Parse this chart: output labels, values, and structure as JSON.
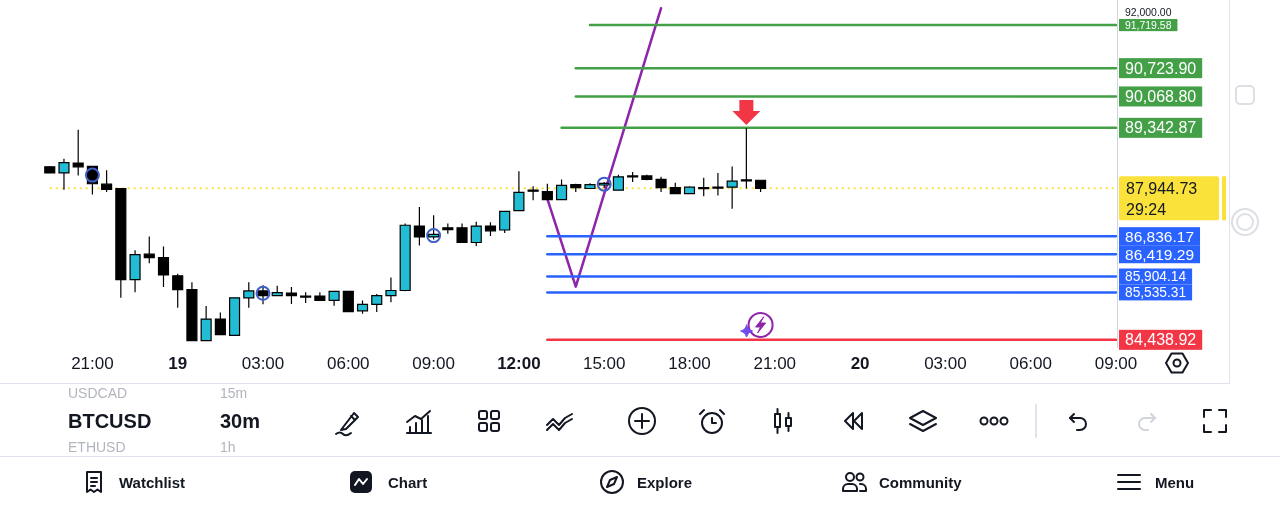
{
  "chart_data": {
    "type": "candlestick",
    "categories": [
      null,
      null,
      null,
      null,
      null,
      null,
      "21:00",
      null,
      null,
      null,
      null,
      null,
      "19",
      null,
      null,
      null,
      null,
      null,
      "03:00",
      null,
      null,
      null,
      null,
      null,
      "06:00",
      null,
      null,
      null,
      null,
      null,
      "09:00",
      null,
      null,
      null,
      null,
      null,
      "12:00",
      null,
      null,
      null,
      null,
      null,
      "15:00",
      null,
      null,
      null,
      null,
      null,
      "18:00",
      null,
      null,
      null,
      null,
      null,
      "21:00",
      null,
      null,
      null,
      null,
      null,
      "20",
      null,
      null,
      null,
      null,
      null,
      "03:00",
      null,
      null,
      null,
      null,
      null,
      "06:00",
      null,
      null,
      null,
      null,
      null,
      "09:00"
    ],
    "ohlc": [
      null,
      null,
      null,
      [
        88440,
        88460,
        88290,
        88300
      ],
      [
        88300,
        88630,
        87910,
        88540
      ],
      [
        88530,
        89300,
        88240,
        88440
      ],
      [
        88450,
        88460,
        87800,
        88050
      ],
      [
        88040,
        88360,
        87860,
        87920
      ],
      [
        87940,
        87950,
        85410,
        85830
      ],
      [
        85830,
        86510,
        85540,
        86410
      ],
      [
        86420,
        86830,
        86210,
        86340
      ],
      [
        86340,
        86600,
        85660,
        85940
      ],
      [
        85920,
        85970,
        85180,
        85600
      ],
      [
        85600,
        85770,
        84410,
        84420
      ],
      [
        84420,
        85220,
        84410,
        84920
      ],
      [
        84920,
        85070,
        84550,
        84560
      ],
      [
        84540,
        85420,
        84530,
        85410
      ],
      [
        85410,
        85770,
        85180,
        85570
      ],
      [
        85570,
        85700,
        85260,
        85460
      ],
      [
        85460,
        85690,
        85450,
        85530
      ],
      [
        85520,
        85660,
        85270,
        85460
      ],
      [
        85450,
        85540,
        85290,
        85440
      ],
      [
        85450,
        85540,
        85340,
        85350
      ],
      [
        85350,
        85560,
        85230,
        85560
      ],
      [
        85560,
        85560,
        85090,
        85090
      ],
      [
        85110,
        85350,
        85040,
        85260
      ],
      [
        85260,
        85500,
        85080,
        85460
      ],
      [
        85460,
        85880,
        85310,
        85580
      ],
      [
        85580,
        87130,
        85560,
        87090
      ],
      [
        87070,
        87510,
        86620,
        86820
      ],
      [
        86820,
        87320,
        86760,
        86880
      ],
      [
        87030,
        87130,
        86890,
        86990
      ],
      [
        87030,
        87130,
        86680,
        86690
      ],
      [
        86690,
        87170,
        86610,
        87070
      ],
      [
        87070,
        87160,
        86840,
        86960
      ],
      [
        86980,
        87420,
        86910,
        87410
      ],
      [
        87430,
        88340,
        87430,
        87850
      ],
      [
        87900,
        87990,
        87670,
        87880
      ],
      [
        87870,
        88050,
        87670,
        87680
      ],
      [
        87680,
        88150,
        87680,
        88010
      ],
      [
        88030,
        88050,
        87860,
        87960
      ],
      [
        87940,
        88060,
        87930,
        88030
      ],
      [
        88020,
        88090,
        87950,
        88060
      ],
      [
        87900,
        88260,
        87890,
        88210
      ],
      [
        88220,
        88320,
        88090,
        88230
      ],
      [
        88230,
        88260,
        88130,
        88150
      ],
      [
        88150,
        88210,
        87860,
        87960
      ],
      [
        87960,
        88070,
        87820,
        87820
      ],
      [
        87820,
        87990,
        87810,
        87970
      ],
      [
        87950,
        88190,
        87760,
        87960
      ],
      [
        87960,
        88300,
        87780,
        87970
      ],
      [
        87970,
        88450,
        87470,
        88110
      ],
      [
        88130,
        89340,
        87940,
        88140
      ],
      [
        88130,
        88140,
        87860,
        87944.73
      ],
      null,
      null,
      null,
      null,
      null,
      null,
      null,
      null,
      null,
      null,
      null,
      null,
      null,
      null,
      null,
      null,
      null,
      null,
      null,
      null,
      null,
      null,
      null,
      null,
      null
    ],
    "colors": [
      null,
      null,
      null,
      "#000000",
      "#22bcd4",
      "#000000",
      "#000000",
      "#000000",
      "#000000",
      "#22bcd4",
      "#000000",
      "#000000",
      "#000000",
      "#000000",
      "#22bcd4",
      "#000000",
      "#22bcd4",
      "#22bcd4",
      "#000000",
      "#22bcd4",
      "#000000",
      "#000000",
      "#000000",
      "#22bcd4",
      "#000000",
      "#22bcd4",
      "#22bcd4",
      "#22bcd4",
      "#22bcd4",
      "#000000",
      "#22bcd4",
      "#000000",
      "#000000",
      "#22bcd4",
      "#000000",
      "#22bcd4",
      "#22bcd4",
      "#000000",
      "#000000",
      "#22bcd4",
      "#000000",
      "#22bcd4",
      "#22bcd4",
      "#22bcd4",
      "#22bcd4",
      "#000000",
      "#000000",
      "#000000",
      "#22bcd4",
      "#22bcd4",
      "#22bcd4",
      "#22bcd4",
      "#22bcd4",
      "#000000",
      null,
      null,
      null,
      null,
      null,
      null,
      null,
      null,
      null,
      null,
      null,
      null,
      null,
      null,
      null,
      null,
      null,
      null,
      null,
      null,
      null,
      null,
      null,
      null,
      null
    ],
    "series": [
      {
        "type": "line",
        "color": "#8e24aa",
        "values": [
          null,
          null,
          null,
          null,
          null,
          null,
          null,
          null,
          null,
          null,
          null,
          null,
          null,
          null,
          null,
          null,
          null,
          null,
          null,
          null,
          null,
          null,
          null,
          null,
          null,
          null,
          null,
          null,
          null,
          null,
          null,
          null,
          null,
          null,
          null,
          null,
          null,
          null,
          87700,
          86690,
          85670,
          86740,
          87820,
          88890,
          89960,
          91040,
          92110,
          null,
          null,
          null,
          null,
          null,
          null,
          null,
          null,
          null,
          null,
          null,
          null,
          null,
          null,
          null,
          null,
          null,
          null,
          null,
          null,
          null,
          null,
          null,
          null,
          null,
          null,
          null,
          null,
          null,
          null,
          null,
          null
        ]
      },
      {
        "type": "line",
        "color": "#43a047",
        "values": [
          null,
          null,
          null,
          null,
          null,
          null,
          null,
          null,
          null,
          null,
          null,
          null,
          null,
          null,
          null,
          null,
          null,
          null,
          null,
          null,
          null,
          null,
          null,
          null,
          null,
          null,
          null,
          null,
          null,
          null,
          null,
          null,
          null,
          null,
          null,
          null,
          null,
          null,
          null,
          null,
          null,
          91719.58,
          91719.58,
          91719.58,
          91719.58,
          91719.58,
          91719.58,
          91719.58,
          91719.58,
          91719.58,
          91719.58,
          91719.58,
          91719.58,
          91719.58,
          91719.58,
          91719.58,
          91719.58,
          91719.58,
          91719.58,
          91719.58,
          91719.58,
          91719.58,
          91719.58,
          91719.58,
          91719.58,
          91719.58,
          91719.58,
          91719.58,
          91719.58,
          91719.58,
          91719.58,
          91719.58,
          91719.58,
          91719.58,
          91719.58,
          91719.58,
          91719.58,
          91719.58,
          91719.58
        ]
      },
      {
        "type": "line",
        "color": "#43a047",
        "values": [
          null,
          null,
          null,
          null,
          null,
          null,
          null,
          null,
          null,
          null,
          null,
          null,
          null,
          null,
          null,
          null,
          null,
          null,
          null,
          null,
          null,
          null,
          null,
          null,
          null,
          null,
          null,
          null,
          null,
          null,
          null,
          null,
          null,
          null,
          null,
          null,
          null,
          null,
          null,
          null,
          90723.9,
          90723.9,
          90723.9,
          90723.9,
          90723.9,
          90723.9,
          90723.9,
          90723.9,
          90723.9,
          90723.9,
          90723.9,
          90723.9,
          90723.9,
          90723.9,
          90723.9,
          90723.9,
          90723.9,
          90723.9,
          90723.9,
          90723.9,
          90723.9,
          90723.9,
          90723.9,
          90723.9,
          90723.9,
          90723.9,
          90723.9,
          90723.9,
          90723.9,
          90723.9,
          90723.9,
          90723.9,
          90723.9,
          90723.9,
          90723.9,
          90723.9,
          90723.9,
          90723.9,
          90723.9
        ]
      },
      {
        "type": "line",
        "color": "#43a047",
        "values": [
          null,
          null,
          null,
          null,
          null,
          null,
          null,
          null,
          null,
          null,
          null,
          null,
          null,
          null,
          null,
          null,
          null,
          null,
          null,
          null,
          null,
          null,
          null,
          null,
          null,
          null,
          null,
          null,
          null,
          null,
          null,
          null,
          null,
          null,
          null,
          null,
          null,
          null,
          null,
          null,
          90068.8,
          90068.8,
          90068.8,
          90068.8,
          90068.8,
          90068.8,
          90068.8,
          90068.8,
          90068.8,
          90068.8,
          90068.8,
          90068.8,
          90068.8,
          90068.8,
          90068.8,
          90068.8,
          90068.8,
          90068.8,
          90068.8,
          90068.8,
          90068.8,
          90068.8,
          90068.8,
          90068.8,
          90068.8,
          90068.8,
          90068.8,
          90068.8,
          90068.8,
          90068.8,
          90068.8,
          90068.8,
          90068.8,
          90068.8,
          90068.8,
          90068.8,
          90068.8,
          90068.8,
          90068.8
        ]
      },
      {
        "type": "line",
        "color": "#43a047",
        "values": [
          null,
          null,
          null,
          null,
          null,
          null,
          null,
          null,
          null,
          null,
          null,
          null,
          null,
          null,
          null,
          null,
          null,
          null,
          null,
          null,
          null,
          null,
          null,
          null,
          null,
          null,
          null,
          null,
          null,
          null,
          null,
          null,
          null,
          null,
          null,
          null,
          null,
          null,
          null,
          89342.87,
          89342.87,
          89342.87,
          89342.87,
          89342.87,
          89342.87,
          89342.87,
          89342.87,
          89342.87,
          89342.87,
          89342.87,
          89342.87,
          89342.87,
          89342.87,
          89342.87,
          89342.87,
          89342.87,
          89342.87,
          89342.87,
          89342.87,
          89342.87,
          89342.87,
          89342.87,
          89342.87,
          89342.87,
          89342.87,
          89342.87,
          89342.87,
          89342.87,
          89342.87,
          89342.87,
          89342.87,
          89342.87,
          89342.87,
          89342.87,
          89342.87,
          89342.87,
          89342.87,
          89342.87,
          89342.87
        ]
      },
      {
        "type": "line",
        "color": "#2962ff",
        "values": [
          null,
          null,
          null,
          null,
          null,
          null,
          null,
          null,
          null,
          null,
          null,
          null,
          null,
          null,
          null,
          null,
          null,
          null,
          null,
          null,
          null,
          null,
          null,
          null,
          null,
          null,
          null,
          null,
          null,
          null,
          null,
          null,
          null,
          null,
          null,
          null,
          null,
          null,
          86836.17,
          86836.17,
          86836.17,
          86836.17,
          86836.17,
          86836.17,
          86836.17,
          86836.17,
          86836.17,
          86836.17,
          86836.17,
          86836.17,
          86836.17,
          86836.17,
          86836.17,
          86836.17,
          86836.17,
          86836.17,
          86836.17,
          86836.17,
          86836.17,
          86836.17,
          86836.17,
          86836.17,
          86836.17,
          86836.17,
          86836.17,
          86836.17,
          86836.17,
          86836.17,
          86836.17,
          86836.17,
          86836.17,
          86836.17,
          86836.17,
          86836.17,
          86836.17,
          86836.17,
          86836.17,
          86836.17,
          86836.17
        ]
      },
      {
        "type": "line",
        "color": "#2962ff",
        "values": [
          null,
          null,
          null,
          null,
          null,
          null,
          null,
          null,
          null,
          null,
          null,
          null,
          null,
          null,
          null,
          null,
          null,
          null,
          null,
          null,
          null,
          null,
          null,
          null,
          null,
          null,
          null,
          null,
          null,
          null,
          null,
          null,
          null,
          null,
          null,
          null,
          null,
          null,
          86419.29,
          86419.29,
          86419.29,
          86419.29,
          86419.29,
          86419.29,
          86419.29,
          86419.29,
          86419.29,
          86419.29,
          86419.29,
          86419.29,
          86419.29,
          86419.29,
          86419.29,
          86419.29,
          86419.29,
          86419.29,
          86419.29,
          86419.29,
          86419.29,
          86419.29,
          86419.29,
          86419.29,
          86419.29,
          86419.29,
          86419.29,
          86419.29,
          86419.29,
          86419.29,
          86419.29,
          86419.29,
          86419.29,
          86419.29,
          86419.29,
          86419.29,
          86419.29,
          86419.29,
          86419.29,
          86419.29,
          86419.29
        ]
      },
      {
        "type": "line",
        "color": "#2962ff",
        "values": [
          null,
          null,
          null,
          null,
          null,
          null,
          null,
          null,
          null,
          null,
          null,
          null,
          null,
          null,
          null,
          null,
          null,
          null,
          null,
          null,
          null,
          null,
          null,
          null,
          null,
          null,
          null,
          null,
          null,
          null,
          null,
          null,
          null,
          null,
          null,
          null,
          null,
          null,
          85904.14,
          85904.14,
          85904.14,
          85904.14,
          85904.14,
          85904.14,
          85904.14,
          85904.14,
          85904.14,
          85904.14,
          85904.14,
          85904.14,
          85904.14,
          85904.14,
          85904.14,
          85904.14,
          85904.14,
          85904.14,
          85904.14,
          85904.14,
          85904.14,
          85904.14,
          85904.14,
          85904.14,
          85904.14,
          85904.14,
          85904.14,
          85904.14,
          85904.14,
          85904.14,
          85904.14,
          85904.14,
          85904.14,
          85904.14,
          85904.14,
          85904.14,
          85904.14,
          85904.14,
          85904.14,
          85904.14,
          85904.14
        ]
      },
      {
        "type": "line",
        "color": "#2962ff",
        "values": [
          null,
          null,
          null,
          null,
          null,
          null,
          null,
          null,
          null,
          null,
          null,
          null,
          null,
          null,
          null,
          null,
          null,
          null,
          null,
          null,
          null,
          null,
          null,
          null,
          null,
          null,
          null,
          null,
          null,
          null,
          null,
          null,
          null,
          null,
          null,
          null,
          null,
          null,
          85535.31,
          85535.31,
          85535.31,
          85535.31,
          85535.31,
          85535.31,
          85535.31,
          85535.31,
          85535.31,
          85535.31,
          85535.31,
          85535.31,
          85535.31,
          85535.31,
          85535.31,
          85535.31,
          85535.31,
          85535.31,
          85535.31,
          85535.31,
          85535.31,
          85535.31,
          85535.31,
          85535.31,
          85535.31,
          85535.31,
          85535.31,
          85535.31,
          85535.31,
          85535.31,
          85535.31,
          85535.31,
          85535.31,
          85535.31,
          85535.31,
          85535.31,
          85535.31,
          85535.31,
          85535.31,
          85535.31,
          85535.31
        ]
      },
      {
        "type": "line",
        "color": "#f23645",
        "values": [
          null,
          null,
          null,
          null,
          null,
          null,
          null,
          null,
          null,
          null,
          null,
          null,
          null,
          null,
          null,
          null,
          null,
          null,
          null,
          null,
          null,
          null,
          null,
          null,
          null,
          null,
          null,
          null,
          null,
          null,
          null,
          null,
          null,
          null,
          null,
          null,
          null,
          null,
          84438.92,
          84438.92,
          84438.92,
          84438.92,
          84438.92,
          84438.92,
          84438.92,
          84438.92,
          84438.92,
          84438.92,
          84438.92,
          84438.92,
          84438.92,
          84438.92,
          84438.92,
          84438.92,
          84438.92,
          84438.92,
          84438.92,
          84438.92,
          84438.92,
          84438.92,
          84438.92,
          84438.92,
          84438.92,
          84438.92,
          84438.92,
          84438.92,
          84438.92,
          84438.92,
          84438.92,
          84438.92,
          84438.92,
          84438.92,
          84438.92,
          84438.92,
          84438.92,
          84438.92,
          84438.92,
          84438.92,
          84438.92
        ]
      }
    ],
    "ref_lines": [
      {
        "axis": "y",
        "value": 87944.73,
        "label": "87,944.73",
        "color": "#fbe23b",
        "line_style": "dotted"
      }
    ],
    "ylim": [
      84250,
      92300
    ],
    "yticks": [
      {
        "value": 92000,
        "label": "92,000.00"
      },
      {
        "value": 91719.58,
        "label": "91,719.58"
      },
      {
        "value": 90723.9,
        "label": "90,723.90"
      },
      {
        "value": 90068.8,
        "label": "90,068.80"
      },
      {
        "value": 89342.87,
        "label": "89,342.87"
      },
      {
        "value": 86836.17,
        "label": "86,836.17"
      },
      {
        "value": 86419.29,
        "label": "86,419.29"
      },
      {
        "value": 85904.14,
        "label": "85,904.14"
      },
      {
        "value": 85535.31,
        "label": "85,535.31"
      },
      {
        "value": 84438.92,
        "label": "84,438.92"
      }
    ],
    "annotations": [
      "29:24",
      "USDCAD",
      "15m",
      "BTCUSD",
      "30m",
      "ETHUSD",
      "1h",
      "Watchlist",
      "Chart",
      "Explore",
      "Community",
      "Menu"
    ]
  }
}
